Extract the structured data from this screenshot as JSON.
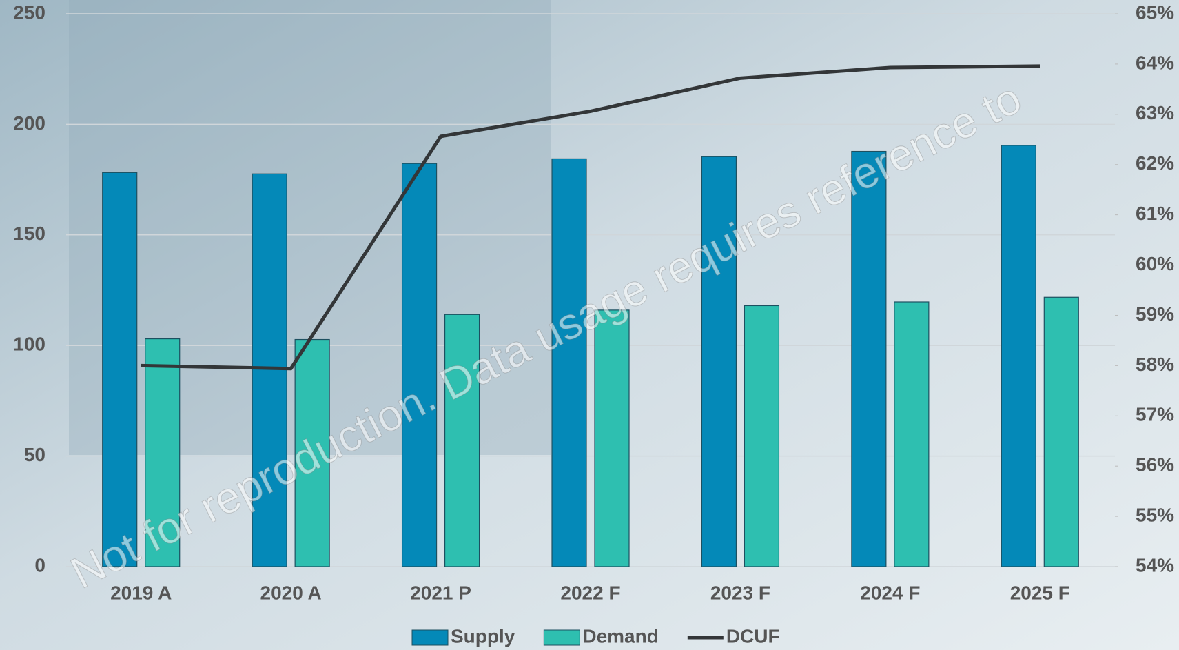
{
  "chart_data": {
    "type": "bar-line",
    "categories": [
      "2019 A",
      "2020 A",
      "2021 P",
      "2022 F",
      "2023 F",
      "2024 F",
      "2025 F"
    ],
    "series": [
      {
        "name": "Supply",
        "color": "#0489b8",
        "values": [
          178.2,
          177.6,
          182.3,
          184.4,
          185.4,
          187.8,
          190.5
        ]
      },
      {
        "name": "Demand",
        "color": "#2ebfb0",
        "values": [
          103,
          102.7,
          114,
          116,
          118,
          119.7,
          121.8
        ]
      },
      {
        "name": "DCUF",
        "color": "#333638",
        "axis": "y2",
        "values": [
          58.0,
          57.94,
          62.56,
          63.06,
          63.72,
          63.93,
          63.96
        ]
      }
    ],
    "ylim": [
      0,
      250
    ],
    "yticks": [
      0,
      50,
      100,
      150,
      200,
      250
    ],
    "y2lim": [
      54,
      65
    ],
    "y2ticks": [
      {
        "value": 54,
        "label": "54%"
      },
      {
        "value": 55,
        "label": "55%"
      },
      {
        "value": 56,
        "label": "56%"
      },
      {
        "value": 57,
        "label": "57%"
      },
      {
        "value": 58,
        "label": "58%"
      },
      {
        "value": 59,
        "label": "59%"
      },
      {
        "value": 60,
        "label": "60%"
      },
      {
        "value": 61,
        "label": "61%"
      },
      {
        "value": 62,
        "label": "62%"
      },
      {
        "value": 63,
        "label": "63%"
      },
      {
        "value": 64,
        "label": "64%"
      },
      {
        "value": 65,
        "label": "65%"
      }
    ],
    "grid": true,
    "legend": "bottom",
    "watermark": "Not for reproduction. Data usage requires reference to"
  }
}
